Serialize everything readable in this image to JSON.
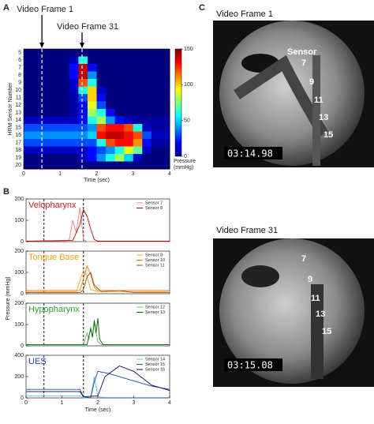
{
  "panel_letters": [
    "A",
    "B",
    "C"
  ],
  "chart_data": [
    {
      "type": "heatmap",
      "xlabel": "Time (sec)",
      "ylabel": "HRM Sensor Number",
      "xlim": [
        0,
        4
      ],
      "xticks": [
        0,
        1,
        2,
        3,
        4
      ],
      "categories": [
        5,
        6,
        7,
        8,
        9,
        10,
        11,
        12,
        13,
        14,
        15,
        16,
        17,
        18,
        19,
        20
      ],
      "xbins": [
        0,
        0.25,
        0.5,
        0.75,
        1,
        1.25,
        1.5,
        1.75,
        2,
        2.25,
        2.5,
        2.75,
        3,
        3.25,
        3.5,
        3.75,
        4
      ],
      "zlim": [
        0,
        150
      ],
      "zticks": [
        0,
        50,
        100,
        150
      ],
      "colorbar_label": [
        "Pressure",
        "(mmHg)"
      ],
      "annotations": [
        {
          "text": "Video Frame 1",
          "x": 0.5
        },
        {
          "text": "Video Frame 31",
          "x": 1.6
        }
      ],
      "z": [
        [
          0,
          0,
          0,
          0,
          0,
          0,
          0,
          0,
          0,
          0,
          0,
          0,
          0,
          0,
          0,
          0
        ],
        [
          0,
          0,
          0,
          0,
          0,
          10,
          60,
          0,
          0,
          0,
          0,
          0,
          0,
          0,
          0,
          0
        ],
        [
          0,
          0,
          0,
          0,
          0,
          20,
          140,
          20,
          0,
          0,
          0,
          0,
          0,
          0,
          0,
          0
        ],
        [
          0,
          0,
          0,
          0,
          0,
          20,
          140,
          40,
          0,
          0,
          0,
          0,
          0,
          0,
          0,
          0
        ],
        [
          0,
          0,
          0,
          0,
          0,
          10,
          120,
          60,
          0,
          0,
          0,
          0,
          0,
          0,
          0,
          0
        ],
        [
          0,
          0,
          0,
          0,
          0,
          10,
          60,
          100,
          10,
          0,
          0,
          0,
          0,
          0,
          0,
          0
        ],
        [
          0,
          0,
          0,
          0,
          0,
          5,
          30,
          100,
          20,
          0,
          0,
          0,
          0,
          0,
          0,
          0
        ],
        [
          0,
          0,
          0,
          0,
          0,
          5,
          20,
          90,
          30,
          0,
          0,
          0,
          0,
          0,
          0,
          0
        ],
        [
          0,
          0,
          0,
          0,
          0,
          5,
          20,
          80,
          60,
          20,
          0,
          0,
          0,
          0,
          0,
          0
        ],
        [
          10,
          10,
          10,
          10,
          10,
          10,
          20,
          60,
          80,
          40,
          20,
          10,
          5,
          5,
          5,
          5
        ],
        [
          30,
          30,
          30,
          30,
          30,
          30,
          30,
          40,
          120,
          130,
          130,
          120,
          60,
          10,
          5,
          5
        ],
        [
          40,
          40,
          40,
          40,
          40,
          40,
          40,
          50,
          130,
          140,
          140,
          130,
          120,
          30,
          10,
          10
        ],
        [
          30,
          30,
          30,
          30,
          30,
          30,
          30,
          30,
          60,
          120,
          130,
          130,
          110,
          20,
          5,
          5
        ],
        [
          10,
          10,
          10,
          10,
          10,
          10,
          10,
          20,
          30,
          40,
          60,
          90,
          70,
          10,
          0,
          0
        ],
        [
          0,
          0,
          0,
          0,
          0,
          0,
          10,
          20,
          40,
          60,
          80,
          50,
          10,
          0,
          0,
          0
        ],
        [
          0,
          0,
          0,
          0,
          0,
          0,
          0,
          0,
          0,
          0,
          0,
          0,
          0,
          0,
          0,
          0
        ]
      ]
    },
    {
      "type": "line",
      "label": "Velopharynx",
      "label_color": "#d7191c",
      "xlim": [
        0,
        4
      ],
      "ylim": [
        0,
        200
      ],
      "yticks": [
        0,
        100,
        200
      ],
      "vlines": [
        0.5,
        1.6
      ],
      "series": [
        {
          "name": "Sensor 7",
          "color": "#f08080",
          "x": [
            0,
            1.2,
            1.3,
            1.4,
            1.5,
            1.6,
            1.7,
            4
          ],
          "values": [
            2,
            5,
            100,
            40,
            160,
            10,
            0,
            0
          ]
        },
        {
          "name": "Sensor 8",
          "color": "#c00000",
          "x": [
            0,
            1.3,
            1.5,
            1.6,
            1.7,
            1.8,
            1.9,
            2,
            4
          ],
          "values": [
            2,
            5,
            80,
            150,
            120,
            60,
            10,
            2,
            2
          ]
        }
      ]
    },
    {
      "type": "line",
      "label": "Tongue Base",
      "label_color": "#f39c12",
      "xlim": [
        0,
        4
      ],
      "ylim": [
        0,
        200
      ],
      "yticks": [
        0,
        100,
        200
      ],
      "vlines": [
        0.5,
        1.6
      ],
      "series": [
        {
          "name": "Sensor 9",
          "color": "#f5a623",
          "x": [
            0,
            1.4,
            1.5,
            1.6,
            1.7,
            1.8,
            2,
            2.5,
            3,
            4
          ],
          "values": [
            10,
            10,
            60,
            110,
            80,
            20,
            10,
            10,
            10,
            10
          ]
        },
        {
          "name": "Sensor 10",
          "color": "#e07b00",
          "x": [
            0,
            1.5,
            1.6,
            1.7,
            1.8,
            1.9,
            2,
            2.5,
            4
          ],
          "values": [
            15,
            15,
            70,
            130,
            90,
            30,
            15,
            15,
            15
          ]
        },
        {
          "name": "Sensor 11",
          "color": "#b04a00",
          "x": [
            0,
            1.5,
            1.6,
            1.7,
            1.8,
            1.9,
            2.1,
            2.6,
            3,
            4
          ],
          "values": [
            5,
            5,
            20,
            80,
            100,
            40,
            10,
            15,
            5,
            5
          ]
        }
      ]
    },
    {
      "type": "line",
      "label": "Hypopharynx",
      "label_color": "#2ca02c",
      "xlim": [
        0,
        4
      ],
      "ylim": [
        0,
        200
      ],
      "yticks": [
        0,
        100,
        200
      ],
      "vlines": [
        0.5,
        1.6
      ],
      "series": [
        {
          "name": "Sensor 12",
          "color": "#5cb85c",
          "x": [
            0,
            1.6,
            1.7,
            1.75,
            1.8,
            1.85,
            1.9,
            2,
            2.1,
            4
          ],
          "values": [
            5,
            5,
            60,
            30,
            90,
            40,
            110,
            20,
            5,
            5
          ]
        },
        {
          "name": "Sensor 13",
          "color": "#006400",
          "x": [
            0,
            1.7,
            1.8,
            1.85,
            1.9,
            1.95,
            2,
            2.05,
            2.15,
            4
          ],
          "values": [
            5,
            5,
            80,
            40,
            120,
            60,
            130,
            30,
            5,
            5
          ]
        }
      ]
    },
    {
      "type": "line",
      "label": "UES",
      "label_color": "#1f3fa0",
      "xlim": [
        0,
        4
      ],
      "ylim": [
        0,
        400
      ],
      "yticks": [
        0,
        200,
        400
      ],
      "vlines": [
        0.5,
        1.6
      ],
      "xticks": [
        0,
        1,
        2,
        3,
        4
      ],
      "xlabel": "Time (sec)",
      "ylabel": "Pressure (mmHg)",
      "series": [
        {
          "name": "Sensor 14",
          "color": "#5bc0de",
          "x": [
            0,
            1.5,
            1.6,
            1.8,
            1.9,
            2,
            2.2,
            4
          ],
          "values": [
            20,
            20,
            0,
            0,
            200,
            10,
            5,
            5
          ]
        },
        {
          "name": "Sensor 15",
          "color": "#1f4e9c",
          "x": [
            0,
            1.5,
            1.6,
            1.8,
            1.9,
            2,
            2.3,
            3,
            3.5,
            4
          ],
          "values": [
            80,
            80,
            10,
            0,
            150,
            250,
            230,
            160,
            110,
            80
          ]
        },
        {
          "name": "Sensor 16",
          "color": "#0a0a60",
          "x": [
            0,
            1.5,
            1.6,
            2,
            2.2,
            2.6,
            3,
            3.5,
            4
          ],
          "values": [
            60,
            60,
            10,
            20,
            200,
            300,
            250,
            120,
            70
          ]
        }
      ]
    }
  ],
  "video_frames": [
    {
      "title": "Video Frame 1",
      "sensor_word": "Sensor",
      "sensors": [
        "7",
        "9",
        "11",
        "13",
        "15"
      ],
      "timestamp": "03:14.98"
    },
    {
      "title": "Video Frame 31",
      "sensors": [
        "7",
        "9",
        "11",
        "13",
        "15"
      ],
      "timestamp": "03:15.08"
    }
  ]
}
